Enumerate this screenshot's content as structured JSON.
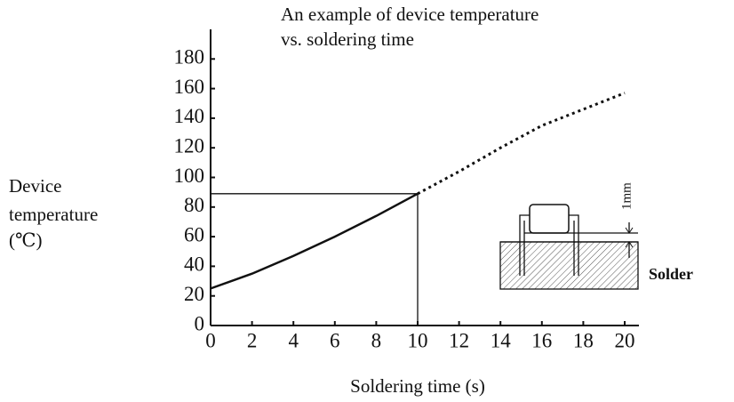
{
  "chart_data": {
    "type": "line",
    "title": [
      "An example of device temperature",
      "vs. soldering time"
    ],
    "x_label": "Soldering time  (s)",
    "y_label": [
      "Device",
      "temperature",
      "(℃)"
    ],
    "x": [
      0,
      2,
      4,
      6,
      8,
      10,
      12,
      14,
      16,
      18,
      20
    ],
    "series": [
      {
        "color": "#111111",
        "style": "solid",
        "values": [
          25,
          35,
          47,
          60,
          74,
          89,
          null,
          null,
          null,
          null,
          null
        ]
      },
      {
        "color": "#111111",
        "style": "dotted",
        "values": [
          null,
          null,
          null,
          null,
          null,
          89,
          104,
          120,
          135,
          146,
          157
        ]
      }
    ],
    "xlim": [
      0,
      20
    ],
    "xticks": [
      0,
      2,
      4,
      6,
      8,
      10,
      12,
      14,
      16,
      18,
      20
    ],
    "ylim": [
      0,
      200
    ],
    "yticks": [
      0,
      20,
      40,
      60,
      80,
      100,
      120,
      140,
      160,
      180
    ],
    "annotations": [
      "Solder",
      "1mm"
    ]
  }
}
